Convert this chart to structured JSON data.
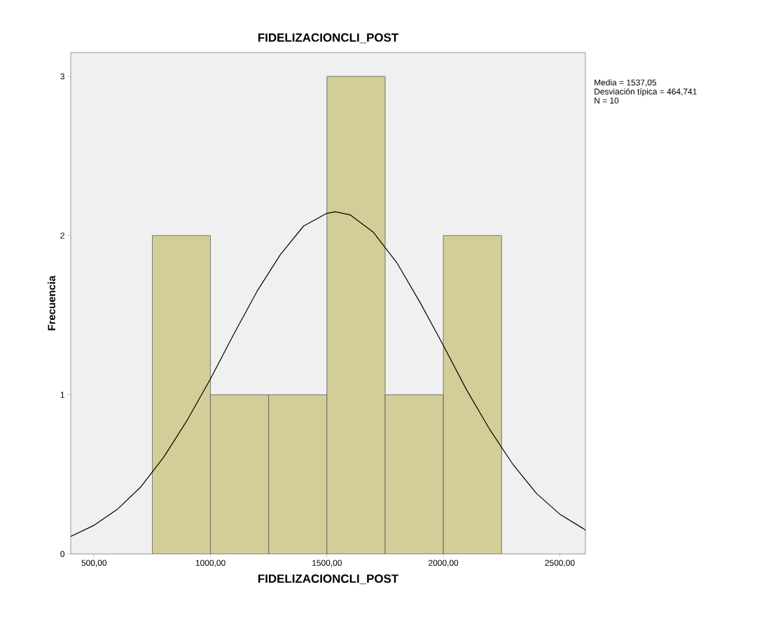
{
  "chart_data": {
    "type": "histogram",
    "title": "FIDELIZACIONCLI_POST",
    "xlabel": "FIDELIZACIONCLI_POST",
    "ylabel": "Frecuencia",
    "bins": [
      750,
      1000,
      1250,
      1500,
      1750,
      2000,
      2250
    ],
    "values": [
      2,
      1,
      1,
      3,
      1,
      2
    ],
    "color": "#d3ce97",
    "series": [
      {
        "type": "line",
        "color": "#000000",
        "x": [
          400,
          500,
          600,
          700,
          800,
          900,
          1000,
          1100,
          1200,
          1300,
          1400,
          1500,
          1537,
          1600,
          1700,
          1800,
          1900,
          2000,
          2100,
          2200,
          2300,
          2400,
          2500,
          2600,
          2610
        ],
        "values": [
          0.11,
          0.18,
          0.28,
          0.42,
          0.61,
          0.84,
          1.1,
          1.38,
          1.65,
          1.88,
          2.06,
          2.14,
          2.15,
          2.13,
          2.02,
          1.83,
          1.58,
          1.31,
          1.03,
          0.78,
          0.56,
          0.38,
          0.25,
          0.16,
          0.15
        ]
      }
    ],
    "xlim": [
      400,
      2610
    ],
    "ylim": [
      0,
      3.15
    ],
    "xticks": [
      {
        "value": 500,
        "label": "500,00"
      },
      {
        "value": 1000,
        "label": "1000,00"
      },
      {
        "value": 1500,
        "label": "1500,00"
      },
      {
        "value": 2000,
        "label": "2000,00"
      },
      {
        "value": 2500,
        "label": "2500,00"
      }
    ],
    "yticks": [
      0,
      1,
      2,
      3
    ],
    "annotations": [
      "Media = 1537,05",
      "Desviación típica = 464,741",
      "N = 10"
    ]
  }
}
